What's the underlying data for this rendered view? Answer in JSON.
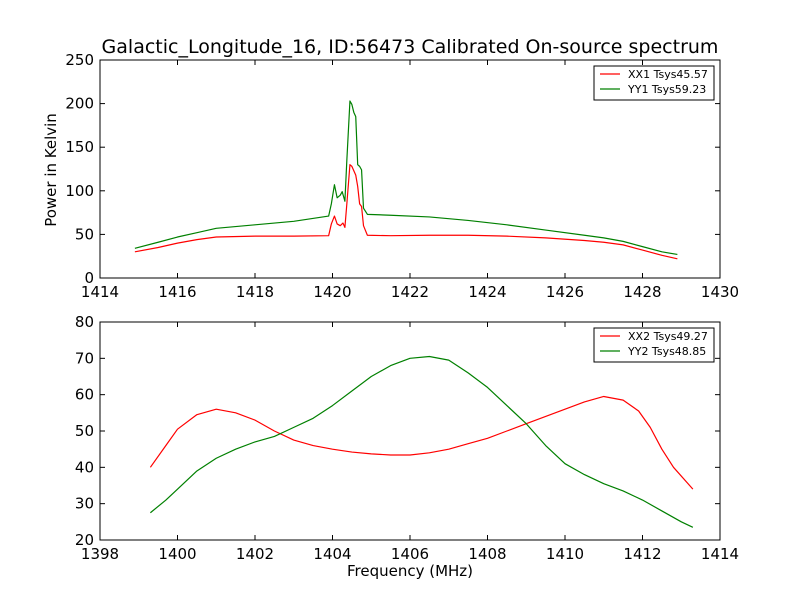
{
  "figure": {
    "title": "Galactic_Longitude_16, ID:56473 Calibrated On-source spectrum",
    "xlabel": "Frequency (MHz)"
  },
  "chart_data": [
    {
      "type": "line",
      "ylabel": "Power in Kelvin",
      "xlim": [
        1414,
        1430
      ],
      "ylim": [
        0,
        250
      ],
      "xticks": [
        1414,
        1416,
        1418,
        1420,
        1422,
        1424,
        1426,
        1428,
        1430
      ],
      "yticks": [
        0,
        50,
        100,
        150,
        200,
        250
      ],
      "legend_position": "top-right",
      "grid": false,
      "series": [
        {
          "name": "XX1 Tsys45.57",
          "color": "#ff0000",
          "points": [
            [
              1414.9,
              30
            ],
            [
              1415.5,
              35
            ],
            [
              1416.0,
              40
            ],
            [
              1416.5,
              44
            ],
            [
              1417.0,
              47
            ],
            [
              1418.0,
              48
            ],
            [
              1419.0,
              48
            ],
            [
              1419.9,
              48.5
            ],
            [
              1419.97,
              62
            ],
            [
              1420.05,
              71
            ],
            [
              1420.12,
              62
            ],
            [
              1420.2,
              60
            ],
            [
              1420.27,
              63
            ],
            [
              1420.32,
              58
            ],
            [
              1420.37,
              85
            ],
            [
              1420.45,
              130
            ],
            [
              1420.5,
              128
            ],
            [
              1420.6,
              118
            ],
            [
              1420.65,
              105
            ],
            [
              1420.7,
              85
            ],
            [
              1420.75,
              82
            ],
            [
              1420.8,
              60
            ],
            [
              1420.9,
              49
            ],
            [
              1421.5,
              48.5
            ],
            [
              1422.5,
              49
            ],
            [
              1423.5,
              49
            ],
            [
              1424.5,
              48
            ],
            [
              1425.5,
              46
            ],
            [
              1426.5,
              43
            ],
            [
              1427.0,
              41
            ],
            [
              1427.5,
              38
            ],
            [
              1428.0,
              32
            ],
            [
              1428.5,
              26
            ],
            [
              1428.9,
              22
            ]
          ]
        },
        {
          "name": "YY1 Tsys59.23",
          "color": "#008000",
          "points": [
            [
              1414.9,
              34
            ],
            [
              1415.5,
              41
            ],
            [
              1416.0,
              47
            ],
            [
              1416.5,
              52
            ],
            [
              1417.0,
              57
            ],
            [
              1418.0,
              61
            ],
            [
              1419.0,
              65
            ],
            [
              1419.9,
              71
            ],
            [
              1419.97,
              85
            ],
            [
              1420.05,
              107
            ],
            [
              1420.12,
              92
            ],
            [
              1420.2,
              95
            ],
            [
              1420.25,
              99
            ],
            [
              1420.32,
              88
            ],
            [
              1420.37,
              135
            ],
            [
              1420.45,
              203
            ],
            [
              1420.5,
              199
            ],
            [
              1420.55,
              190
            ],
            [
              1420.6,
              185
            ],
            [
              1420.65,
              130
            ],
            [
              1420.7,
              128
            ],
            [
              1420.75,
              124
            ],
            [
              1420.8,
              80
            ],
            [
              1420.9,
              73
            ],
            [
              1421.5,
              72
            ],
            [
              1422.5,
              70
            ],
            [
              1423.5,
              66
            ],
            [
              1424.5,
              61
            ],
            [
              1425.5,
              55
            ],
            [
              1426.5,
              49
            ],
            [
              1427.0,
              46
            ],
            [
              1427.5,
              42
            ],
            [
              1428.0,
              36
            ],
            [
              1428.5,
              30
            ],
            [
              1428.9,
              27
            ]
          ]
        }
      ]
    },
    {
      "type": "line",
      "xlim": [
        1398,
        1414
      ],
      "ylim": [
        20,
        80
      ],
      "xticks": [
        1398,
        1400,
        1402,
        1404,
        1406,
        1408,
        1410,
        1412,
        1414
      ],
      "yticks": [
        20,
        30,
        40,
        50,
        60,
        70,
        80
      ],
      "legend_position": "top-right",
      "grid": false,
      "series": [
        {
          "name": "XX2 Tsys49.27",
          "color": "#ff0000",
          "points": [
            [
              1399.3,
              40
            ],
            [
              1399.7,
              46
            ],
            [
              1400.0,
              50.5
            ],
            [
              1400.5,
              54.5
            ],
            [
              1401.0,
              56
            ],
            [
              1401.5,
              55
            ],
            [
              1402.0,
              53
            ],
            [
              1402.5,
              50
            ],
            [
              1403.0,
              47.5
            ],
            [
              1403.5,
              46
            ],
            [
              1404.0,
              45
            ],
            [
              1404.5,
              44.2
            ],
            [
              1405.0,
              43.7
            ],
            [
              1405.5,
              43.4
            ],
            [
              1406.0,
              43.4
            ],
            [
              1406.5,
              44
            ],
            [
              1407.0,
              45
            ],
            [
              1407.5,
              46.5
            ],
            [
              1408.0,
              48
            ],
            [
              1408.5,
              50
            ],
            [
              1409.0,
              52
            ],
            [
              1409.5,
              54
            ],
            [
              1410.0,
              56
            ],
            [
              1410.5,
              58
            ],
            [
              1411.0,
              59.5
            ],
            [
              1411.5,
              58.5
            ],
            [
              1411.9,
              55.5
            ],
            [
              1412.2,
              51
            ],
            [
              1412.5,
              45
            ],
            [
              1412.8,
              40
            ],
            [
              1413.3,
              34
            ]
          ]
        },
        {
          "name": "YY2 Tsys48.85",
          "color": "#008000",
          "points": [
            [
              1399.3,
              27.5
            ],
            [
              1399.7,
              31
            ],
            [
              1400.0,
              34
            ],
            [
              1400.5,
              39
            ],
            [
              1401.0,
              42.5
            ],
            [
              1401.5,
              45
            ],
            [
              1402.0,
              47
            ],
            [
              1402.5,
              48.5
            ],
            [
              1403.0,
              51
            ],
            [
              1403.5,
              53.5
            ],
            [
              1404.0,
              57
            ],
            [
              1404.5,
              61
            ],
            [
              1405.0,
              65
            ],
            [
              1405.5,
              68
            ],
            [
              1406.0,
              70
            ],
            [
              1406.5,
              70.5
            ],
            [
              1407.0,
              69.5
            ],
            [
              1407.5,
              66
            ],
            [
              1408.0,
              62
            ],
            [
              1408.5,
              57
            ],
            [
              1409.0,
              52
            ],
            [
              1409.5,
              46
            ],
            [
              1410.0,
              41
            ],
            [
              1410.5,
              38
            ],
            [
              1411.0,
              35.5
            ],
            [
              1411.5,
              33.5
            ],
            [
              1412.0,
              31
            ],
            [
              1412.5,
              28
            ],
            [
              1413.0,
              25
            ],
            [
              1413.3,
              23.5
            ]
          ]
        }
      ]
    }
  ]
}
